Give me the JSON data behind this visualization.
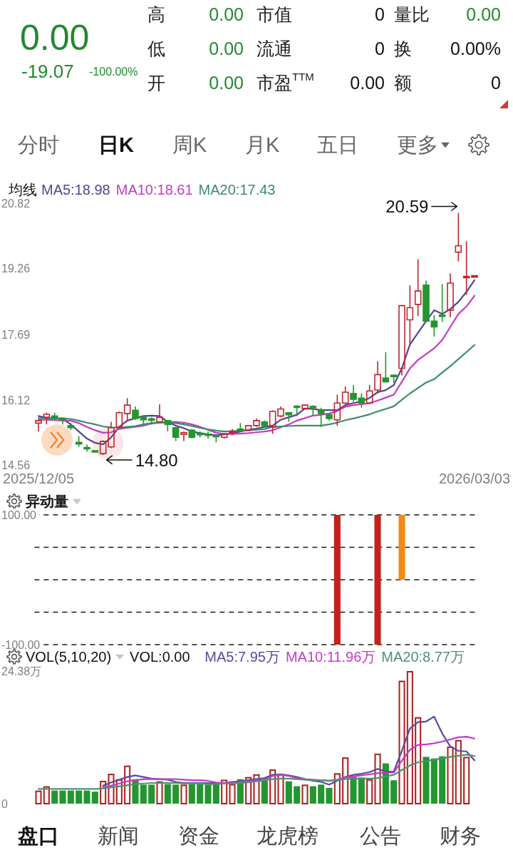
{
  "chart_data": [
    {
      "type": "other",
      "annotations": [
        "0.00",
        "-19.07",
        "-100.00%",
        "高",
        "0.00",
        "市值",
        "0",
        "量比",
        "0.00",
        "低",
        "0.00",
        "流通",
        "0",
        "换",
        "0.00%",
        "开",
        "0.00",
        "市盈$^{TTM}$",
        "0.00",
        "额",
        "0",
        "分时",
        "日K",
        "周K",
        "月K",
        "五日",
        "更多"
      ]
    },
    {
      "type": "candlestick",
      "legend_title": "均线",
      "legend": "top left",
      "categories": [
        "2025/12/05",
        null,
        null,
        null,
        null,
        null,
        null,
        null,
        null,
        null,
        null,
        null,
        null,
        null,
        null,
        null,
        null,
        null,
        null,
        null,
        null,
        null,
        null,
        null,
        null,
        null,
        null,
        null,
        null,
        null,
        null,
        null,
        null,
        null,
        null,
        null,
        null,
        null,
        null,
        null,
        null,
        null,
        null,
        null,
        null,
        null,
        null,
        null,
        null,
        null,
        null,
        null,
        null,
        null,
        "2026/03/03"
      ],
      "ohlc": [
        [
          15.56,
          15.64,
          15.36,
          15.62
        ],
        [
          15.7,
          15.81,
          15.53,
          15.77
        ],
        [
          15.73,
          15.81,
          15.62,
          15.7
        ],
        [
          15.67,
          15.7,
          15.53,
          15.65
        ],
        [
          15.5,
          15.56,
          15.39,
          15.45
        ],
        [
          15.1,
          15.25,
          14.99,
          15.06
        ],
        [
          14.97,
          15.05,
          14.88,
          14.95
        ],
        [
          14.89,
          14.9,
          14.86,
          14.88
        ],
        [
          14.83,
          15.15,
          14.8,
          15.12
        ],
        [
          14.99,
          15.59,
          14.96,
          15.45
        ],
        [
          15.47,
          15.84,
          15.44,
          15.81
        ],
        [
          15.79,
          16.16,
          15.64,
          15.99
        ],
        [
          15.87,
          15.96,
          15.64,
          15.67
        ],
        [
          15.7,
          15.73,
          15.53,
          15.64
        ],
        [
          15.66,
          15.7,
          15.53,
          15.63
        ],
        [
          15.59,
          16.01,
          15.57,
          15.7
        ],
        [
          15.62,
          15.64,
          15.36,
          15.53
        ],
        [
          15.45,
          15.47,
          15.13,
          15.22
        ],
        [
          15.29,
          15.36,
          15.13,
          15.33
        ],
        [
          15.39,
          15.42,
          15.19,
          15.22
        ],
        [
          15.31,
          15.36,
          15.22,
          15.29
        ],
        [
          15.29,
          15.36,
          15.19,
          15.27
        ],
        [
          15.26,
          15.27,
          15.1,
          15.24
        ],
        [
          15.22,
          15.32,
          15.19,
          15.3
        ],
        [
          15.33,
          15.42,
          15.27,
          15.36
        ],
        [
          15.42,
          15.56,
          15.36,
          15.39
        ],
        [
          15.39,
          15.51,
          15.38,
          15.5
        ],
        [
          15.5,
          15.67,
          15.47,
          15.62
        ],
        [
          15.59,
          15.62,
          15.47,
          15.5
        ],
        [
          15.47,
          15.87,
          15.3,
          15.84
        ],
        [
          15.73,
          15.96,
          15.7,
          15.9
        ],
        [
          15.81,
          15.82,
          15.59,
          15.76
        ],
        [
          15.96,
          15.99,
          15.73,
          15.94
        ],
        [
          15.91,
          16.0,
          15.9,
          15.99
        ],
        [
          15.96,
          15.99,
          15.73,
          15.93
        ],
        [
          15.87,
          15.93,
          15.47,
          15.79
        ],
        [
          15.76,
          15.79,
          15.62,
          15.67
        ],
        [
          15.64,
          16.24,
          15.5,
          16.04
        ],
        [
          16.04,
          16.44,
          16.01,
          16.3
        ],
        [
          16.27,
          16.47,
          16.07,
          16.13
        ],
        [
          16.16,
          16.27,
          15.93,
          16.04
        ],
        [
          16.04,
          16.47,
          16.01,
          16.33
        ],
        [
          16.35,
          17.04,
          16.27,
          16.72
        ],
        [
          16.64,
          17.26,
          16.53,
          16.55
        ],
        [
          16.7,
          16.72,
          16.53,
          16.68
        ],
        [
          16.87,
          18.39,
          16.7,
          18.37
        ],
        [
          18.03,
          18.86,
          17.44,
          18.32
        ],
        [
          18.4,
          19.48,
          18.12,
          18.72
        ],
        [
          18.86,
          18.97,
          17.98,
          18.0
        ],
        [
          18.0,
          18.15,
          17.63,
          17.86
        ],
        [
          18.14,
          18.89,
          17.98,
          18.12
        ],
        [
          18.26,
          19.14,
          18.09,
          18.91
        ],
        [
          19.65,
          20.59,
          19.43,
          19.8
        ],
        [
          19.04,
          19.91,
          18.63,
          19.07
        ],
        [
          19.07,
          19.07,
          19.07,
          19.07
        ]
      ],
      "colors": [
        "#c0262c",
        "#c0262c",
        "#23962f",
        "#23962f",
        "#23962f",
        "#23962f",
        "#23962f",
        "#23962f",
        "#c0262c",
        "#c0262c",
        "#c0262c",
        "#c0262c",
        "#23962f",
        "#23962f",
        "#23962f",
        "#c0262c",
        "#23962f",
        "#23962f",
        "#c0262c",
        "#23962f",
        "#23962f",
        "#23962f",
        "#23962f",
        "#c0262c",
        "#c0262c",
        "#23962f",
        "#c0262c",
        "#c0262c",
        "#23962f",
        "#c0262c",
        "#c0262c",
        "#23962f",
        "#23962f",
        "#c0262c",
        "#23962f",
        "#23962f",
        "#23962f",
        "#c0262c",
        "#c0262c",
        "#23962f",
        "#23962f",
        "#c0262c",
        "#c0262c",
        "#23962f",
        "#23962f",
        "#c0262c",
        "#c0262c",
        "#c0262c",
        "#23962f",
        "#23962f",
        "#23962f",
        "#c0262c",
        "#c0262c",
        "#c0262c",
        "#c0262c"
      ],
      "ylim": [
        14.56,
        20.82
      ],
      "yticks": [
        14.56,
        16.12,
        17.69,
        19.26,
        20.82
      ],
      "series": [
        {
          "type": "line",
          "name": "MA5:18.98",
          "color": "#54448f",
          "values": [
            15.73,
            15.68,
            15.67,
            15.66,
            15.53,
            15.36,
            15.19,
            15.09,
            15.05,
            15.22,
            15.47,
            15.62,
            15.68,
            15.73,
            15.74,
            15.73,
            15.59,
            15.5,
            15.44,
            15.36,
            15.32,
            15.29,
            15.27,
            15.29,
            15.32,
            15.36,
            15.4,
            15.43,
            15.47,
            15.5,
            15.64,
            15.7,
            15.76,
            15.91,
            15.9,
            15.87,
            15.87,
            15.87,
            15.99,
            16.04,
            16.08,
            16.16,
            16.3,
            16.35,
            16.47,
            16.87,
            17.44,
            17.72,
            18.0,
            18.26,
            18.17,
            18.29,
            18.46,
            18.7,
            18.98
          ]
        },
        {
          "type": "line",
          "name": "MA10:18.61",
          "color": "#c23cc2",
          "values": [
            15.64,
            15.64,
            15.63,
            15.62,
            15.62,
            15.56,
            15.47,
            15.39,
            15.33,
            15.34,
            15.42,
            15.45,
            15.47,
            15.5,
            15.55,
            15.57,
            15.59,
            15.59,
            15.57,
            15.53,
            15.47,
            15.4,
            15.33,
            15.3,
            15.3,
            15.31,
            15.32,
            15.34,
            15.36,
            15.39,
            15.46,
            15.53,
            15.62,
            15.68,
            15.74,
            15.76,
            15.79,
            15.85,
            15.95,
            15.99,
            16.01,
            16.04,
            16.1,
            16.17,
            16.24,
            16.55,
            16.87,
            17.07,
            17.21,
            17.35,
            17.55,
            17.86,
            18.17,
            18.35,
            18.61
          ]
        },
        {
          "type": "line",
          "name": "MA20:17.43",
          "color": "#3d8c6c",
          "values": [
            15.68,
            15.68,
            15.68,
            15.67,
            15.66,
            15.62,
            15.57,
            15.53,
            15.48,
            15.46,
            15.45,
            15.47,
            15.49,
            15.53,
            15.56,
            15.58,
            15.57,
            15.56,
            15.53,
            15.49,
            15.45,
            15.41,
            15.38,
            15.36,
            15.37,
            15.38,
            15.39,
            15.4,
            15.42,
            15.47,
            15.48,
            15.49,
            15.5,
            15.5,
            15.5,
            15.5,
            15.53,
            15.57,
            15.63,
            15.67,
            15.72,
            15.77,
            15.84,
            15.9,
            15.96,
            16.12,
            16.27,
            16.4,
            16.53,
            16.61,
            16.77,
            16.92,
            17.09,
            17.26,
            17.43
          ]
        }
      ],
      "annotations": [
        "20.59",
        "14.80"
      ]
    },
    {
      "type": "bar",
      "title": "异动量",
      "tick_labels": "y",
      "grid": "y",
      "categories": [
        null,
        null,
        null,
        null,
        null,
        null,
        null,
        null,
        null,
        null,
        null,
        null,
        null,
        null,
        null,
        null,
        null,
        null,
        null,
        null,
        null,
        null,
        null,
        null,
        null,
        null,
        null,
        null,
        null,
        null,
        null,
        null,
        null,
        null,
        null,
        null,
        null,
        null,
        null,
        null,
        null,
        null,
        null,
        null,
        null,
        null,
        null,
        null,
        null,
        null,
        null,
        null,
        null,
        null,
        null
      ],
      "ylim": [
        -100,
        100
      ],
      "yticks": [
        {
          "value": 100,
          "label": "100.00"
        },
        {
          "value": 50,
          "label": null
        },
        {
          "value": 0,
          "label": null
        },
        {
          "value": -50,
          "label": null
        },
        {
          "value": -100,
          "label": "-100.00"
        }
      ],
      "series": [
        {
          "color": "#c4201c",
          "values": [
            null,
            null,
            null,
            null,
            null,
            null,
            null,
            null,
            null,
            null,
            null,
            null,
            null,
            null,
            null,
            null,
            null,
            null,
            null,
            null,
            null,
            null,
            null,
            null,
            null,
            null,
            null,
            null,
            null,
            null,
            null,
            null,
            null,
            null,
            null,
            null,
            null,
            100,
            null,
            null,
            null,
            null,
            100,
            null,
            null,
            null,
            null,
            null,
            null,
            null,
            null,
            null,
            null,
            null,
            null
          ]
        },
        {
          "color": "#c4201c",
          "values": [
            null,
            null,
            null,
            null,
            null,
            null,
            null,
            null,
            null,
            null,
            null,
            null,
            null,
            null,
            null,
            null,
            null,
            null,
            null,
            null,
            null,
            null,
            null,
            null,
            null,
            null,
            null,
            null,
            null,
            null,
            null,
            null,
            null,
            null,
            null,
            null,
            null,
            -100,
            null,
            null,
            null,
            null,
            -100,
            null,
            null,
            null,
            null,
            null,
            null,
            null,
            null,
            null,
            null,
            null,
            null
          ]
        },
        {
          "color": "#f28a18",
          "values": [
            null,
            null,
            null,
            null,
            null,
            null,
            null,
            null,
            null,
            null,
            null,
            null,
            null,
            null,
            null,
            null,
            null,
            null,
            null,
            null,
            null,
            null,
            null,
            null,
            null,
            null,
            null,
            null,
            null,
            null,
            null,
            null,
            null,
            null,
            null,
            null,
            null,
            null,
            null,
            null,
            null,
            null,
            null,
            null,
            null,
            100,
            null,
            null,
            null,
            null,
            null,
            null,
            null,
            null,
            null
          ]
        }
      ]
    },
    {
      "type": "bar",
      "title": "VOL(5,10,20)",
      "tick_labels": "y",
      "legend": "top right",
      "annotations": [
        "VOL:0.00"
      ],
      "categories": [
        null,
        null,
        null,
        null,
        null,
        null,
        null,
        null,
        null,
        null,
        null,
        null,
        null,
        null,
        null,
        null,
        null,
        null,
        null,
        null,
        null,
        null,
        null,
        null,
        null,
        null,
        null,
        null,
        null,
        null,
        null,
        null,
        null,
        null,
        null,
        null,
        null,
        null,
        null,
        null,
        null,
        null,
        null,
        null,
        null,
        null,
        null,
        null,
        null,
        null,
        null,
        null,
        null,
        null,
        null
      ],
      "ylim": [
        0,
        24.38
      ],
      "yticks": [
        0,
        {
          "value": 24.38,
          "label": "24.38万"
        }
      ],
      "series": [
        {
          "color": "#a8201f",
          "values": [
            2.4,
            3.2,
            null,
            null,
            null,
            null,
            null,
            null,
            4.2,
            5.5,
            4.5,
            7.0,
            null,
            null,
            null,
            4.1,
            null,
            null,
            3.5,
            null,
            null,
            null,
            null,
            4.4,
            3.6,
            null,
            4.9,
            5.4,
            null,
            6.3,
            5.4,
            null,
            null,
            3.5,
            null,
            null,
            null,
            5.6,
            8.5,
            null,
            null,
            4.5,
            9.2,
            null,
            null,
            22.6,
            24.38,
            15.9,
            null,
            null,
            null,
            10.5,
            11.7,
            8.6,
            null
          ]
        },
        {
          "color": "#23962f",
          "values": [
            null,
            null,
            2.4,
            2.4,
            2.4,
            2.4,
            2.4,
            2.2,
            null,
            null,
            null,
            null,
            4.5,
            3.5,
            3.5,
            null,
            3.6,
            3.5,
            null,
            3.6,
            3.6,
            3.5,
            3.6,
            null,
            null,
            4.5,
            null,
            null,
            4.2,
            null,
            null,
            4.1,
            3.2,
            null,
            3.2,
            3.5,
            2.9,
            null,
            null,
            4.9,
            4.8,
            null,
            null,
            7.4,
            4.3,
            null,
            null,
            null,
            8.6,
            8.3,
            8.7,
            null,
            null,
            null,
            null
          ]
        },
        {
          "type": "line",
          "name": "MA5:7.95万",
          "color": "#5b4a9e",
          "values": [
            null,
            null,
            null,
            null,
            null,
            null,
            null,
            null,
            3.3,
            3.9,
            4.4,
            4.9,
            5.2,
            4.9,
            4.6,
            4.5,
            4.4,
            4.0,
            3.8,
            3.8,
            3.8,
            3.8,
            3.8,
            3.8,
            4.0,
            4.1,
            4.3,
            4.5,
            4.7,
            5.3,
            5.4,
            5.2,
            4.9,
            4.5,
            4.2,
            4.0,
            3.5,
            4.2,
            4.9,
            5.3,
            5.5,
            5.8,
            6.4,
            5.9,
            5.9,
            9.7,
            13.8,
            15.0,
            15.1,
            16.0,
            12.9,
            10.5,
            9.7,
            9.6,
            7.95
          ]
        },
        {
          "type": "line",
          "name": "MA10:11.96万",
          "color": "#c33cc6",
          "values": [
            null,
            null,
            null,
            null,
            null,
            null,
            null,
            null,
            3.0,
            3.3,
            3.7,
            4.1,
            4.3,
            4.5,
            4.5,
            4.5,
            4.5,
            4.5,
            4.4,
            4.3,
            4.3,
            4.2,
            3.9,
            3.8,
            3.8,
            4.0,
            4.1,
            4.3,
            4.4,
            5.1,
            5.3,
            5.1,
            4.7,
            4.5,
            4.4,
            4.3,
            4.2,
            4.4,
            4.8,
            5.0,
            5.2,
            5.4,
            5.6,
            5.7,
            5.7,
            7.9,
            9.9,
            10.8,
            10.9,
            11.1,
            11.4,
            11.8,
            12.2,
            12.3,
            11.96
          ]
        },
        {
          "type": "line",
          "name": "MA20:8.77万",
          "color": "#4f9274",
          "values": [
            2.7,
            2.7,
            2.7,
            2.7,
            2.7,
            2.7,
            2.7,
            2.7,
            2.8,
            3.0,
            3.2,
            3.4,
            3.6,
            3.7,
            3.8,
            3.8,
            3.8,
            3.8,
            3.7,
            3.7,
            3.7,
            3.6,
            3.6,
            3.7,
            3.7,
            3.8,
            3.9,
            4.1,
            4.3,
            4.5,
            4.6,
            4.6,
            4.5,
            4.4,
            4.3,
            4.3,
            4.2,
            4.3,
            4.5,
            4.6,
            4.6,
            4.6,
            4.7,
            5.0,
            5.3,
            6.2,
            7.0,
            7.6,
            7.8,
            8.1,
            8.3,
            8.6,
            8.8,
            9.0,
            8.77
          ]
        }
      ]
    },
    {
      "type": "other",
      "annotations": [
        "盘口",
        "新闻",
        "资金",
        "龙虎榜",
        "公告",
        "财务"
      ]
    }
  ]
}
